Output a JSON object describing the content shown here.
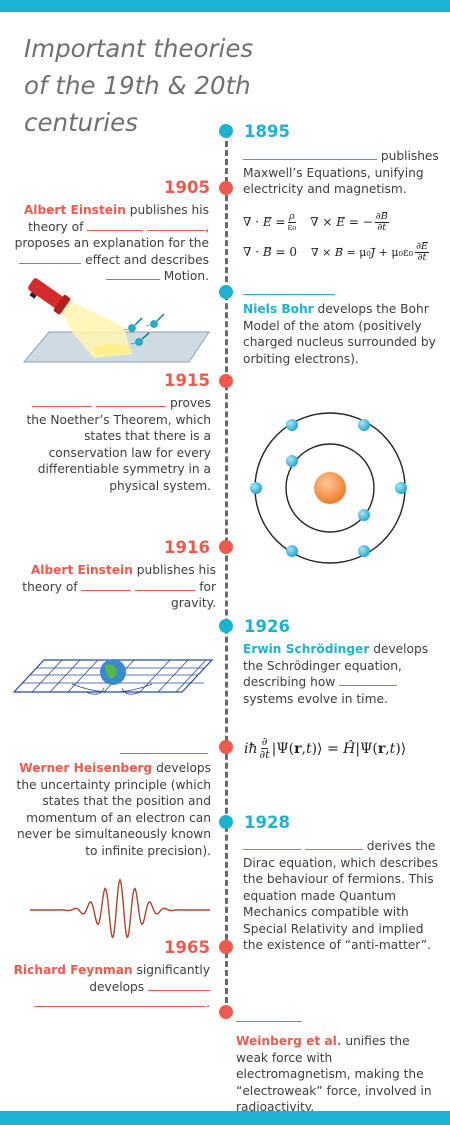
{
  "title": "Important theories of the 19th & 20th centuries",
  "events": {
    "e1895": {
      "year": "1895",
      "text": "publishes Maxwell’s Equations, unifying electricity and magnetism."
    },
    "e1905": {
      "year": "1905",
      "name": "Albert Einstein",
      "t1": "publishes his theory of",
      "t2": ", proposes an explanation for the",
      "t3": "effect and describes",
      "t4": "Motion."
    },
    "bohr": {
      "name": "Niels Bohr",
      "text": "develops the Bohr Model of the atom (positively charged nucleus surrounded by orbiting electrons)."
    },
    "e1915": {
      "year": "1915",
      "t1": "proves the Noether’s Theorem, which states that there is a conservation law for every differentiable symmetry in a physical system."
    },
    "e1916": {
      "year": "1916",
      "name": "Albert Einstein",
      "t1": "publishes his theory of",
      "t2": "for gravity."
    },
    "e1926": {
      "year": "1926",
      "name": "Erwin Schrödinger",
      "t1": "develops the Schrödinger equation, describing how",
      "t2": "systems evolve in time."
    },
    "heis": {
      "name": "Werner Heisenberg",
      "text": "develops the uncertainty principle (which states that the position and momentum of an electron can never be simultaneously known to infinite precision)."
    },
    "e1928": {
      "year": "1928",
      "text": "derives the Dirac equation, which describes the behaviour of fermions. This equation made Quantum Mechanics compatible with Special Relativity and implied the existence of “anti-matter”."
    },
    "e1965": {
      "year": "1965",
      "name": "Richard Feynman",
      "text": "significantly develops",
      "end": "."
    },
    "weinberg": {
      "name": "Weinberg et al.",
      "text": "unifies the weak force with electromagnetism, making the “electroweak” force, involved in radioactivity."
    }
  },
  "colors": {
    "blue": "#1cb3d1",
    "red": "#ef5a4c",
    "axis": "#6a6a6a",
    "title": "#6f6f6f"
  }
}
